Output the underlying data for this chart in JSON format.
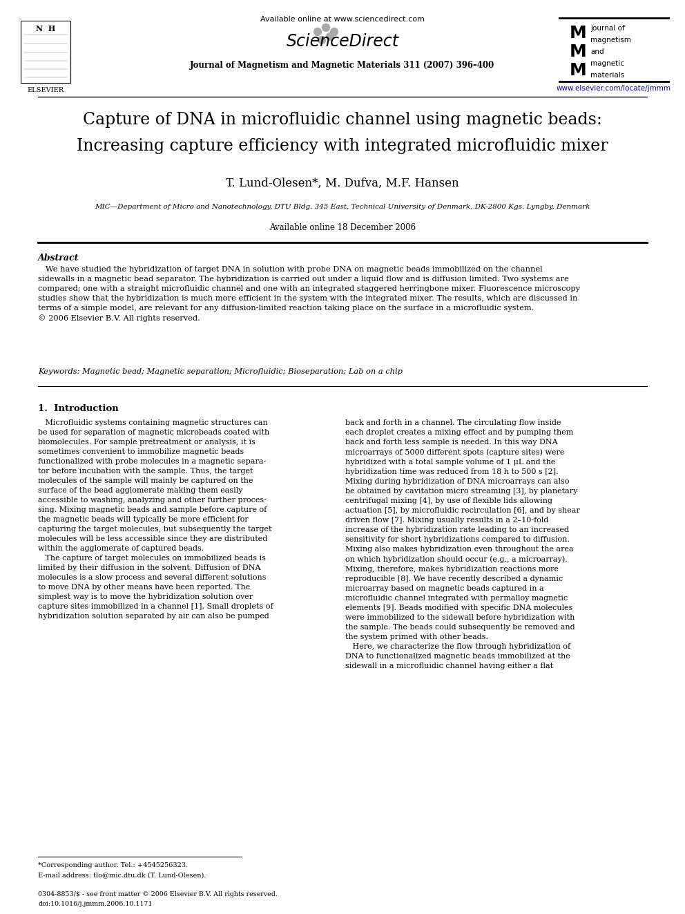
{
  "title_line1": "Capture of DNA in microfluidic channel using magnetic beads:",
  "title_line2": "Increasing capture efficiency with integrated microfluidic mixer",
  "authors": "T. Lund-Olesen*, M. Dufva, M.F. Hansen",
  "affiliation": "MIC—Department of Micro and Nanotechnology, DTU Bldg. 345 East, Technical University of Denmark, DK-2800 Kgs. Lyngby, Denmark",
  "available_online": "Available online 18 December 2006",
  "journal_header": "Journal of Magnetism and Magnetic Materials 311 (2007) 396–400",
  "available_online_header": "Available online at www.sciencedirect.com",
  "elsevier_url": "www.elsevier.com/locate/jmmm",
  "abstract_title": "Abstract",
  "abstract_body": "   We have studied the hybridization of target DNA in solution with probe DNA on magnetic beads immobilized on the channel\nsidewalls in a magnetic bead separator. The hybridization is carried out under a liquid flow and is diffusion limited. Two systems are\ncompared; one with a straight microfluidic channel and one with an integrated staggered herringbone mixer. Fluorescence microscopy\nstudies show that the hybridization is much more efficient in the system with the integrated mixer. The results, which are discussed in\nterms of a simple model, are relevant for any diffusion-limited reaction taking place on the surface in a microfluidic system.\n© 2006 Elsevier B.V. All rights reserved.",
  "keywords": "Keywords: Magnetic bead; Magnetic separation; Microfluidic; Bioseparation; Lab on a chip",
  "section1_title": "1.  Introduction",
  "section1_left": "   Microfluidic systems containing magnetic structures can\nbe used for separation of magnetic microbeads coated with\nbiomolecules. For sample pretreatment or analysis, it is\nsometimes convenient to immobilize magnetic beads\nfunctionalized with probe molecules in a magnetic separa-\ntor before incubation with the sample. Thus, the target\nmolecules of the sample will mainly be captured on the\nsurface of the bead agglomerate making them easily\naccessible to washing, analyzing and other further proces-\nsing. Mixing magnetic beads and sample before capture of\nthe magnetic beads will typically be more efficient for\ncapturing the target molecules, but subsequently the target\nmolecules will be less accessible since they are distributed\nwithin the agglomerate of captured beads.\n   The capture of target molecules on immobilized beads is\nlimited by their diffusion in the solvent. Diffusion of DNA\nmolecules is a slow process and several different solutions\nto move DNA by other means have been reported. The\nsimplest way is to move the hybridization solution over\ncapture sites immobilized in a channel [1]. Small droplets of\nhybridization solution separated by air can also be pumped",
  "section1_right": "back and forth in a channel. The circulating flow inside\neach droplet creates a mixing effect and by pumping them\nback and forth less sample is needed. In this way DNA\nmicroarrays of 5000 different spots (capture sites) were\nhybridized with a total sample volume of 1 μL and the\nhybridization time was reduced from 18 h to 500 s [2].\nMixing during hybridization of DNA microarrays can also\nbe obtained by cavitation micro streaming [3], by planetary\ncentrifugal mixing [4], by use of flexible lids allowing\nactuation [5], by microfluidic recirculation [6], and by shear\ndriven flow [7]. Mixing usually results in a 2–10-fold\nincrease of the hybridization rate leading to an increased\nsensitivity for short hybridizations compared to diffusion.\nMixing also makes hybridization even throughout the area\non which hybridization should occur (e.g., a microarray).\nMixing, therefore, makes hybridization reactions more\nreproducible [8]. We have recently described a dynamic\nmicroarray based on magnetic beads captured in a\nmicrofluidic channel integrated with permalloy magnetic\nelements [9]. Beads modified with specific DNA molecules\nwere immobilized to the sidewall before hybridization with\nthe sample. The beads could subsequently be removed and\nthe system primed with other beads.\n   Here, we characterize the flow through hybridization of\nDNA to functionalized magnetic beads immobilized at the\nsidewall in a microfluidic channel having either a flat",
  "footnote_star": "*Corresponding author. Tel.: +4545256323.",
  "footnote_email": "E-mail address: tlo@mic.dtu.dk (T. Lund-Olesen).",
  "footnote_issn": "0304-8853/$ - see front matter © 2006 Elsevier B.V. All rights reserved.",
  "footnote_doi": "doi:10.1016/j.jmmm.2006.10.1171",
  "bg_color": "#ffffff"
}
